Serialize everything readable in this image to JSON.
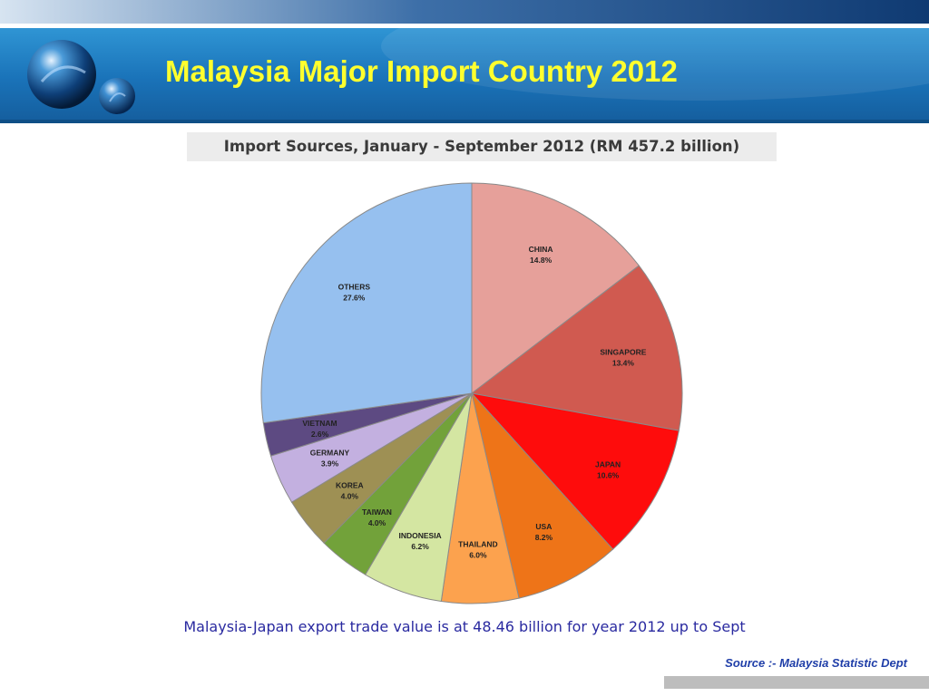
{
  "slide": {
    "title": "Malaysia Major Import Country 2012",
    "caption": "Malaysia-Japan export trade value is at 48.46 billion for year 2012 up to Sept",
    "source": "Source :- Malaysia Statistic Dept"
  },
  "colors": {
    "title_text": "#ffff2e",
    "header_blue": "#1a73b9",
    "caption_text": "#2a2aa0"
  },
  "chart_data": {
    "type": "pie",
    "title": "Import Sources, January - September 2012 (RM 457.2 billion)",
    "unit": "%",
    "slices": [
      {
        "label": "CHINA",
        "value": 14.8,
        "value_label": "14.8%",
        "color": "#e6a09a"
      },
      {
        "label": "SINGAPORE",
        "value": 13.4,
        "value_label": "13.4%",
        "color": "#d05a50"
      },
      {
        "label": "JAPAN",
        "value": 10.6,
        "value_label": "10.6%",
        "color": "#fe0c0c"
      },
      {
        "label": "USA",
        "value": 8.2,
        "value_label": "8.2%",
        "color": "#ee7418"
      },
      {
        "label": "THAILAND",
        "value": 6.0,
        "value_label": "6.0%",
        "color": "#fca24e"
      },
      {
        "label": "INDONESIA",
        "value": 6.2,
        "value_label": "6.2%",
        "color": "#d4e6a2"
      },
      {
        "label": "TAIWAN",
        "value": 4.0,
        "value_label": "4.0%",
        "color": "#72a23a"
      },
      {
        "label": "KOREA",
        "value": 4.0,
        "value_label": "4.0%",
        "color": "#9e9054"
      },
      {
        "label": "GERMANY",
        "value": 3.9,
        "value_label": "3.9%",
        "color": "#c3b0e0"
      },
      {
        "label": "VIETNAM",
        "value": 2.6,
        "value_label": "2.6%",
        "color": "#5d4a82"
      },
      {
        "label": "OTHERS",
        "value": 27.6,
        "value_label": "27.6%",
        "color": "#96c0ef"
      }
    ]
  }
}
